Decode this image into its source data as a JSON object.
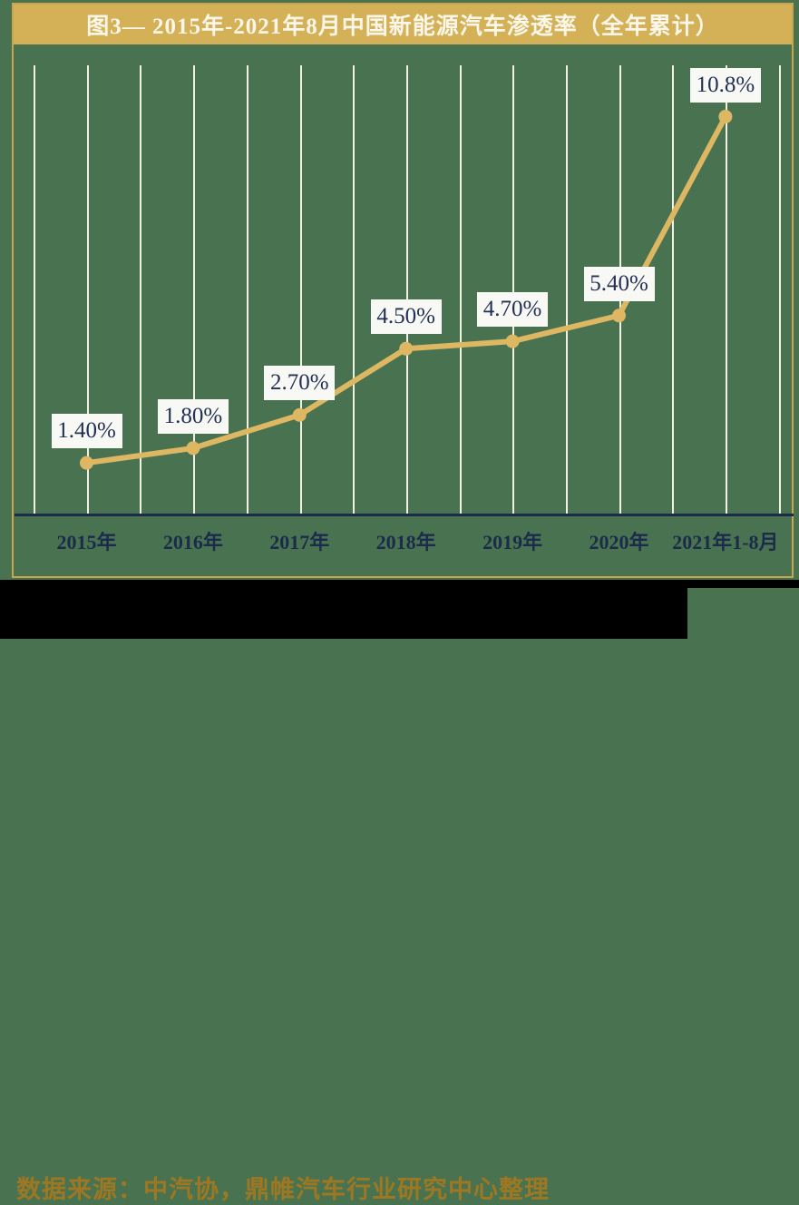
{
  "title": {
    "text": "图3— 2015年-2021年8月中国新能源汽车渗透率（全年累计）"
  },
  "footer": {
    "source_text": "数据来源：中汽协，鼎帷汽车行业研究中心整理"
  },
  "colors": {
    "canvas_bg": "#497350",
    "title_bar_bg": "#D4B156",
    "title_text": "#FAF6EA",
    "card_border_gold": "#CBA54E",
    "gridline_cream": "#F3F0E3",
    "axis_navy": "#1C2B4B",
    "x_label_navy": "#1C2B4B",
    "line_gold": "#DEB763",
    "marker_gold": "#DEB763",
    "label_box_bg": "#F8F8F5",
    "label_text_navy": "#223055",
    "footer_bg": "#000000",
    "footer_text_gold": "#9E7722"
  },
  "chart_data": {
    "type": "line",
    "title": "图3— 2015年-2021年8月中国新能源汽车渗透率（全年累计）",
    "categories": [
      "2015年",
      "2016年",
      "2017年",
      "2018年",
      "2019年",
      "2020年",
      "2021年1-8月"
    ],
    "values": [
      1.4,
      1.8,
      2.7,
      4.5,
      4.7,
      5.4,
      10.8
    ],
    "point_labels": [
      "1.40%",
      "1.80%",
      "2.70%",
      "4.50%",
      "4.70%",
      "5.40%",
      "10.8%"
    ],
    "xlabel": "",
    "ylabel": "",
    "ylim": [
      0,
      12.5
    ],
    "grid": "vertical, minor ticks at half-category intervals",
    "legend": "none",
    "marker": "circle",
    "source": "数据来源：中汽协，鼎帷汽车行业研究中心整理"
  }
}
